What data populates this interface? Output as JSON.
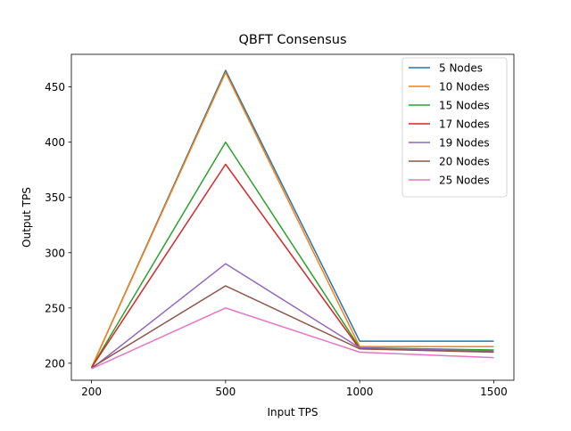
{
  "chart_data": {
    "type": "line",
    "title": "QBFT Consensus",
    "xlabel": "Input TPS",
    "ylabel": "Output TPS",
    "x": [
      200,
      500,
      1000,
      1500
    ],
    "xticks": [
      200,
      500,
      1000,
      1500
    ],
    "yticks": [
      200,
      250,
      300,
      350,
      400,
      450
    ],
    "ylim": [
      184.6,
      479.5
    ],
    "grid": false,
    "legend_position": "top-right",
    "series": [
      {
        "name": "5 Nodes",
        "color": "#1f77b4",
        "values": [
          196,
          465,
          220,
          220
        ]
      },
      {
        "name": "10 Nodes",
        "color": "#ff7f0e",
        "values": [
          196,
          463,
          215,
          215
        ]
      },
      {
        "name": "15 Nodes",
        "color": "#2ca02c",
        "values": [
          196,
          400,
          214,
          212
        ]
      },
      {
        "name": "17 Nodes",
        "color": "#d62728",
        "values": [
          196,
          380,
          213,
          211
        ]
      },
      {
        "name": "19 Nodes",
        "color": "#9467bd",
        "values": [
          195,
          290,
          214,
          211
        ]
      },
      {
        "name": "20 Nodes",
        "color": "#8c564b",
        "values": [
          196,
          270,
          213,
          210
        ]
      },
      {
        "name": "25 Nodes",
        "color": "#e377c2",
        "values": [
          195,
          250,
          210,
          205
        ]
      }
    ]
  }
}
